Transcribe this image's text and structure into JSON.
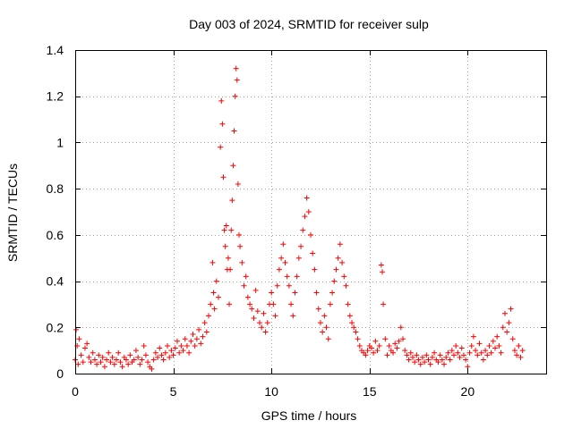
{
  "chart_data": {
    "type": "scatter",
    "title": "Day 003 of 2024, SRMTID for receiver sulp",
    "xlabel": "GPS time / hours",
    "ylabel": "SRMTID / TECUs",
    "xlim": [
      0,
      24
    ],
    "ylim": [
      0,
      1.4
    ],
    "xticks": [
      0,
      5,
      10,
      15,
      20
    ],
    "xtick_labels": [
      "0",
      "5",
      "10",
      "15",
      "20"
    ],
    "yticks": [
      0,
      0.2,
      0.4,
      0.6,
      0.8,
      1.0,
      1.2,
      1.4
    ],
    "ytick_labels": [
      "0",
      "0.2",
      "0.4",
      "0.6",
      "0.8",
      "1",
      "1.2",
      "1.4"
    ],
    "grid": true,
    "marker": "plus",
    "series": [
      {
        "name": "SRMTID",
        "color": "#ff0000",
        "points": [
          [
            0.0,
            0.06
          ],
          [
            0.05,
            0.19
          ],
          [
            0.1,
            0.12
          ],
          [
            0.15,
            0.04
          ],
          [
            0.2,
            0.15
          ],
          [
            0.3,
            0.08
          ],
          [
            0.4,
            0.05
          ],
          [
            0.5,
            0.11
          ],
          [
            0.6,
            0.13
          ],
          [
            0.7,
            0.07
          ],
          [
            0.8,
            0.05
          ],
          [
            0.9,
            0.09
          ],
          [
            1.0,
            0.06
          ],
          [
            1.1,
            0.04
          ],
          [
            1.2,
            0.08
          ],
          [
            1.3,
            0.05
          ],
          [
            1.4,
            0.07
          ],
          [
            1.5,
            0.03
          ],
          [
            1.6,
            0.06
          ],
          [
            1.7,
            0.09
          ],
          [
            1.8,
            0.05
          ],
          [
            1.9,
            0.07
          ],
          [
            2.0,
            0.04
          ],
          [
            2.1,
            0.06
          ],
          [
            2.2,
            0.09
          ],
          [
            2.3,
            0.05
          ],
          [
            2.4,
            0.03
          ],
          [
            2.5,
            0.07
          ],
          [
            2.6,
            0.06
          ],
          [
            2.7,
            0.04
          ],
          [
            2.8,
            0.08
          ],
          [
            2.9,
            0.05
          ],
          [
            3.0,
            0.06
          ],
          [
            3.1,
            0.1
          ],
          [
            3.2,
            0.07
          ],
          [
            3.3,
            0.04
          ],
          [
            3.4,
            0.06
          ],
          [
            3.5,
            0.12
          ],
          [
            3.6,
            0.08
          ],
          [
            3.7,
            0.05
          ],
          [
            3.8,
            0.03
          ],
          [
            3.9,
            0.02
          ],
          [
            4.0,
            0.06
          ],
          [
            4.1,
            0.09
          ],
          [
            4.2,
            0.07
          ],
          [
            4.3,
            0.11
          ],
          [
            4.4,
            0.08
          ],
          [
            4.5,
            0.06
          ],
          [
            4.6,
            0.09
          ],
          [
            4.7,
            0.12
          ],
          [
            4.8,
            0.07
          ],
          [
            4.9,
            0.1
          ],
          [
            5.0,
            0.08
          ],
          [
            5.1,
            0.11
          ],
          [
            5.2,
            0.14
          ],
          [
            5.3,
            0.09
          ],
          [
            5.4,
            0.12
          ],
          [
            5.5,
            0.1
          ],
          [
            5.6,
            0.15
          ],
          [
            5.7,
            0.12
          ],
          [
            5.8,
            0.09
          ],
          [
            5.9,
            0.14
          ],
          [
            6.0,
            0.17
          ],
          [
            6.1,
            0.12
          ],
          [
            6.2,
            0.15
          ],
          [
            6.3,
            0.19
          ],
          [
            6.4,
            0.13
          ],
          [
            6.5,
            0.16
          ],
          [
            6.6,
            0.22
          ],
          [
            6.7,
            0.18
          ],
          [
            6.8,
            0.25
          ],
          [
            6.9,
            0.3
          ],
          [
            7.0,
            0.48
          ],
          [
            7.05,
            0.35
          ],
          [
            7.1,
            0.28
          ],
          [
            7.2,
            0.4
          ],
          [
            7.3,
            0.33
          ],
          [
            7.4,
            0.98
          ],
          [
            7.45,
            1.18
          ],
          [
            7.5,
            1.08
          ],
          [
            7.55,
            0.85
          ],
          [
            7.6,
            0.62
          ],
          [
            7.65,
            0.55
          ],
          [
            7.7,
            0.64
          ],
          [
            7.75,
            0.45
          ],
          [
            7.8,
            0.5
          ],
          [
            7.85,
            0.3
          ],
          [
            7.9,
            0.45
          ],
          [
            7.95,
            0.62
          ],
          [
            8.0,
            0.75
          ],
          [
            8.05,
            0.9
          ],
          [
            8.1,
            1.05
          ],
          [
            8.15,
            1.2
          ],
          [
            8.2,
            1.32
          ],
          [
            8.25,
            1.27
          ],
          [
            8.3,
            0.82
          ],
          [
            8.35,
            0.6
          ],
          [
            8.4,
            0.55
          ],
          [
            8.5,
            0.48
          ],
          [
            8.6,
            0.38
          ],
          [
            8.7,
            0.42
          ],
          [
            8.8,
            0.33
          ],
          [
            8.9,
            0.3
          ],
          [
            9.0,
            0.28
          ],
          [
            9.1,
            0.24
          ],
          [
            9.2,
            0.36
          ],
          [
            9.3,
            0.27
          ],
          [
            9.4,
            0.22
          ],
          [
            9.5,
            0.2
          ],
          [
            9.6,
            0.26
          ],
          [
            9.7,
            0.18
          ],
          [
            9.8,
            0.22
          ],
          [
            9.9,
            0.3
          ],
          [
            10.0,
            0.35
          ],
          [
            10.1,
            0.3
          ],
          [
            10.2,
            0.25
          ],
          [
            10.3,
            0.38
          ],
          [
            10.4,
            0.45
          ],
          [
            10.5,
            0.5
          ],
          [
            10.6,
            0.56
          ],
          [
            10.7,
            0.48
          ],
          [
            10.8,
            0.42
          ],
          [
            10.9,
            0.38
          ],
          [
            11.0,
            0.3
          ],
          [
            11.1,
            0.25
          ],
          [
            11.2,
            0.35
          ],
          [
            11.3,
            0.42
          ],
          [
            11.4,
            0.5
          ],
          [
            11.5,
            0.55
          ],
          [
            11.6,
            0.62
          ],
          [
            11.7,
            0.68
          ],
          [
            11.8,
            0.76
          ],
          [
            11.9,
            0.7
          ],
          [
            12.0,
            0.6
          ],
          [
            12.1,
            0.52
          ],
          [
            12.2,
            0.45
          ],
          [
            12.3,
            0.35
          ],
          [
            12.4,
            0.28
          ],
          [
            12.5,
            0.22
          ],
          [
            12.6,
            0.18
          ],
          [
            12.7,
            0.25
          ],
          [
            12.8,
            0.2
          ],
          [
            12.9,
            0.15
          ],
          [
            13.0,
            0.3
          ],
          [
            13.1,
            0.35
          ],
          [
            13.2,
            0.4
          ],
          [
            13.3,
            0.45
          ],
          [
            13.4,
            0.5
          ],
          [
            13.5,
            0.56
          ],
          [
            13.6,
            0.48
          ],
          [
            13.7,
            0.42
          ],
          [
            13.8,
            0.38
          ],
          [
            13.9,
            0.3
          ],
          [
            14.0,
            0.25
          ],
          [
            14.1,
            0.22
          ],
          [
            14.2,
            0.2
          ],
          [
            14.3,
            0.18
          ],
          [
            14.4,
            0.15
          ],
          [
            14.5,
            0.12
          ],
          [
            14.6,
            0.1
          ],
          [
            14.7,
            0.09
          ],
          [
            14.8,
            0.08
          ],
          [
            14.9,
            0.1
          ],
          [
            15.0,
            0.12
          ],
          [
            15.1,
            0.11
          ],
          [
            15.2,
            0.09
          ],
          [
            15.3,
            0.14
          ],
          [
            15.4,
            0.1
          ],
          [
            15.5,
            0.12
          ],
          [
            15.6,
            0.47
          ],
          [
            15.65,
            0.44
          ],
          [
            15.7,
            0.3
          ],
          [
            15.8,
            0.15
          ],
          [
            15.9,
            0.08
          ],
          [
            16.0,
            0.12
          ],
          [
            16.1,
            0.1
          ],
          [
            16.2,
            0.09
          ],
          [
            16.3,
            0.13
          ],
          [
            16.4,
            0.11
          ],
          [
            16.5,
            0.14
          ],
          [
            16.6,
            0.2
          ],
          [
            16.7,
            0.15
          ],
          [
            16.8,
            0.1
          ],
          [
            16.9,
            0.08
          ],
          [
            17.0,
            0.06
          ],
          [
            17.1,
            0.09
          ],
          [
            17.2,
            0.07
          ],
          [
            17.3,
            0.05
          ],
          [
            17.4,
            0.08
          ],
          [
            17.5,
            0.06
          ],
          [
            17.6,
            0.04
          ],
          [
            17.7,
            0.07
          ],
          [
            17.8,
            0.05
          ],
          [
            17.9,
            0.08
          ],
          [
            18.0,
            0.06
          ],
          [
            18.1,
            0.04
          ],
          [
            18.2,
            0.07
          ],
          [
            18.3,
            0.09
          ],
          [
            18.4,
            0.06
          ],
          [
            18.5,
            0.05
          ],
          [
            18.6,
            0.08
          ],
          [
            18.7,
            0.06
          ],
          [
            18.8,
            0.04
          ],
          [
            18.9,
            0.07
          ],
          [
            19.0,
            0.09
          ],
          [
            19.1,
            0.06
          ],
          [
            19.2,
            0.1
          ],
          [
            19.3,
            0.08
          ],
          [
            19.4,
            0.12
          ],
          [
            19.5,
            0.09
          ],
          [
            19.6,
            0.07
          ],
          [
            19.7,
            0.11
          ],
          [
            19.8,
            0.08
          ],
          [
            19.9,
            0.06
          ],
          [
            20.0,
            0.03
          ],
          [
            20.1,
            0.09
          ],
          [
            20.2,
            0.12
          ],
          [
            20.3,
            0.16
          ],
          [
            20.4,
            0.1
          ],
          [
            20.5,
            0.08
          ],
          [
            20.6,
            0.13
          ],
          [
            20.7,
            0.09
          ],
          [
            20.8,
            0.06
          ],
          [
            20.9,
            0.1
          ],
          [
            21.0,
            0.08
          ],
          [
            21.1,
            0.12
          ],
          [
            21.2,
            0.09
          ],
          [
            21.3,
            0.14
          ],
          [
            21.4,
            0.11
          ],
          [
            21.5,
            0.16
          ],
          [
            21.6,
            0.12
          ],
          [
            21.7,
            0.09
          ],
          [
            21.8,
            0.2
          ],
          [
            21.9,
            0.26
          ],
          [
            22.0,
            0.18
          ],
          [
            22.1,
            0.22
          ],
          [
            22.2,
            0.28
          ],
          [
            22.3,
            0.15
          ],
          [
            22.4,
            0.1
          ],
          [
            22.5,
            0.08
          ],
          [
            22.6,
            0.12
          ],
          [
            22.7,
            0.07
          ],
          [
            22.8,
            0.1
          ]
        ]
      }
    ]
  }
}
